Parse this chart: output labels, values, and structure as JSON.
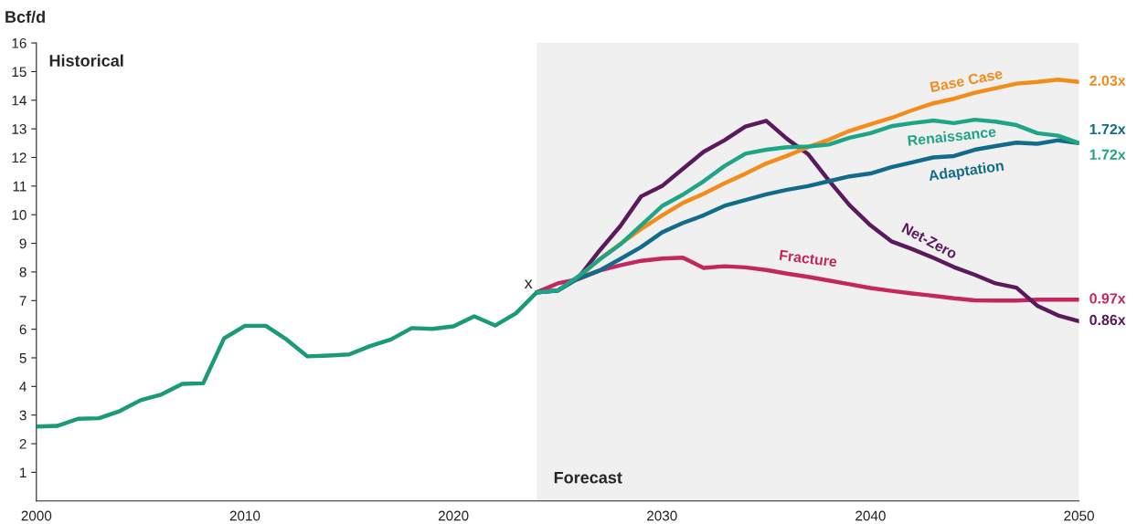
{
  "chart_data": {
    "type": "line",
    "ylabel": "Bcf/d",
    "xlim": [
      2000,
      2050
    ],
    "ylim": [
      0,
      16
    ],
    "xticks": [
      2000,
      2010,
      2020,
      2030,
      2040,
      2050
    ],
    "yticks": [
      1,
      2,
      3,
      4,
      5,
      6,
      7,
      8,
      9,
      10,
      11,
      12,
      13,
      14,
      15,
      16
    ],
    "grid": false,
    "legend": false,
    "marker": "none",
    "line_style": "solid",
    "bands": [
      {
        "axis": "x",
        "from": 2024,
        "to": 2050,
        "label": "Forecast",
        "color": "#f0f0f0"
      }
    ],
    "annotations": [
      "Historical",
      "x",
      "2.03x",
      "1.72x",
      "1.72x",
      "0.97x",
      "0.86x"
    ],
    "series": [
      {
        "color": "#1a9a78",
        "x": [
          2000,
          2001,
          2002,
          2003,
          2004,
          2005,
          2006,
          2007,
          2008,
          2009,
          2010,
          2011,
          2012,
          2013,
          2014,
          2015,
          2016,
          2017,
          2018,
          2019,
          2020,
          2021,
          2022,
          2023,
          2024
        ],
        "values": [
          2.6,
          2.62,
          2.87,
          2.89,
          3.14,
          3.52,
          3.72,
          4.09,
          4.11,
          5.68,
          6.12,
          6.12,
          5.64,
          5.05,
          5.08,
          5.12,
          5.41,
          5.64,
          6.04,
          6.01,
          6.1,
          6.45,
          6.13,
          6.56,
          7.29
        ]
      },
      {
        "name": "Fracture",
        "color": "#c4265e",
        "x": [
          2024,
          2025,
          2026,
          2027,
          2028,
          2029,
          2030,
          2031,
          2032,
          2033,
          2034,
          2035,
          2036,
          2037,
          2038,
          2039,
          2040,
          2041,
          2042,
          2043,
          2044,
          2045,
          2046,
          2047,
          2048,
          2049,
          2050
        ],
        "values": [
          7.29,
          7.6,
          7.75,
          8.05,
          8.23,
          8.39,
          8.47,
          8.5,
          8.14,
          8.2,
          8.16,
          8.07,
          7.94,
          7.83,
          7.7,
          7.57,
          7.44,
          7.34,
          7.25,
          7.17,
          7.08,
          7.01,
          7.0,
          7.0,
          7.03,
          7.03,
          7.03
        ]
      },
      {
        "name": "Net-Zero",
        "color": "#5a1a5c",
        "x": [
          2024,
          2025,
          2026,
          2027,
          2028,
          2029,
          2030,
          2031,
          2032,
          2033,
          2034,
          2035,
          2036,
          2037,
          2038,
          2039,
          2040,
          2041,
          2042,
          2043,
          2044,
          2045,
          2046,
          2047,
          2048,
          2049,
          2050
        ],
        "values": [
          7.29,
          7.35,
          7.8,
          8.74,
          9.6,
          10.64,
          11.0,
          11.6,
          12.2,
          12.6,
          13.08,
          13.28,
          12.65,
          12.12,
          11.2,
          10.33,
          9.63,
          9.07,
          8.8,
          8.5,
          8.17,
          7.9,
          7.6,
          7.45,
          6.82,
          6.48,
          6.28
        ]
      },
      {
        "name": "Base Case",
        "color": "#f28c1a",
        "x": [
          2026,
          2027,
          2028,
          2029,
          2030,
          2031,
          2032,
          2033,
          2034,
          2035,
          2036,
          2037,
          2038,
          2039,
          2040,
          2041,
          2042,
          2043,
          2044,
          2045,
          2046,
          2047,
          2048,
          2049,
          2050
        ],
        "values": [
          7.8,
          8.44,
          8.98,
          9.5,
          9.97,
          10.41,
          10.73,
          11.1,
          11.43,
          11.79,
          12.06,
          12.36,
          12.62,
          12.93,
          13.16,
          13.38,
          13.65,
          13.89,
          14.05,
          14.26,
          14.42,
          14.58,
          14.64,
          14.72,
          14.64
        ]
      },
      {
        "name": "Adaptation",
        "color": "#106c8a",
        "x": [
          2024,
          2025,
          2026,
          2027,
          2028,
          2029,
          2030,
          2031,
          2032,
          2033,
          2034,
          2035,
          2036,
          2037,
          2038,
          2039,
          2040,
          2041,
          2042,
          2043,
          2044,
          2045,
          2046,
          2047,
          2048,
          2049,
          2050
        ],
        "values": [
          7.29,
          7.35,
          7.78,
          8.05,
          8.45,
          8.87,
          9.38,
          9.71,
          9.98,
          10.31,
          10.51,
          10.71,
          10.87,
          11.0,
          11.17,
          11.34,
          11.44,
          11.66,
          11.83,
          12.0,
          12.05,
          12.27,
          12.4,
          12.52,
          12.48,
          12.6,
          12.5
        ]
      },
      {
        "name": "Renaissance",
        "color": "#1fa585",
        "x": [
          2024,
          2025,
          2026,
          2027,
          2028,
          2029,
          2030,
          2031,
          2032,
          2033,
          2034,
          2035,
          2036,
          2037,
          2038,
          2039,
          2040,
          2041,
          2042,
          2043,
          2044,
          2045,
          2046,
          2047,
          2048,
          2049,
          2050
        ],
        "values": [
          7.29,
          7.35,
          7.85,
          8.43,
          8.96,
          9.63,
          10.3,
          10.7,
          11.17,
          11.7,
          12.13,
          12.27,
          12.36,
          12.38,
          12.45,
          12.69,
          12.85,
          13.09,
          13.2,
          13.29,
          13.2,
          13.32,
          13.25,
          13.13,
          12.85,
          12.76,
          12.5
        ]
      }
    ]
  }
}
